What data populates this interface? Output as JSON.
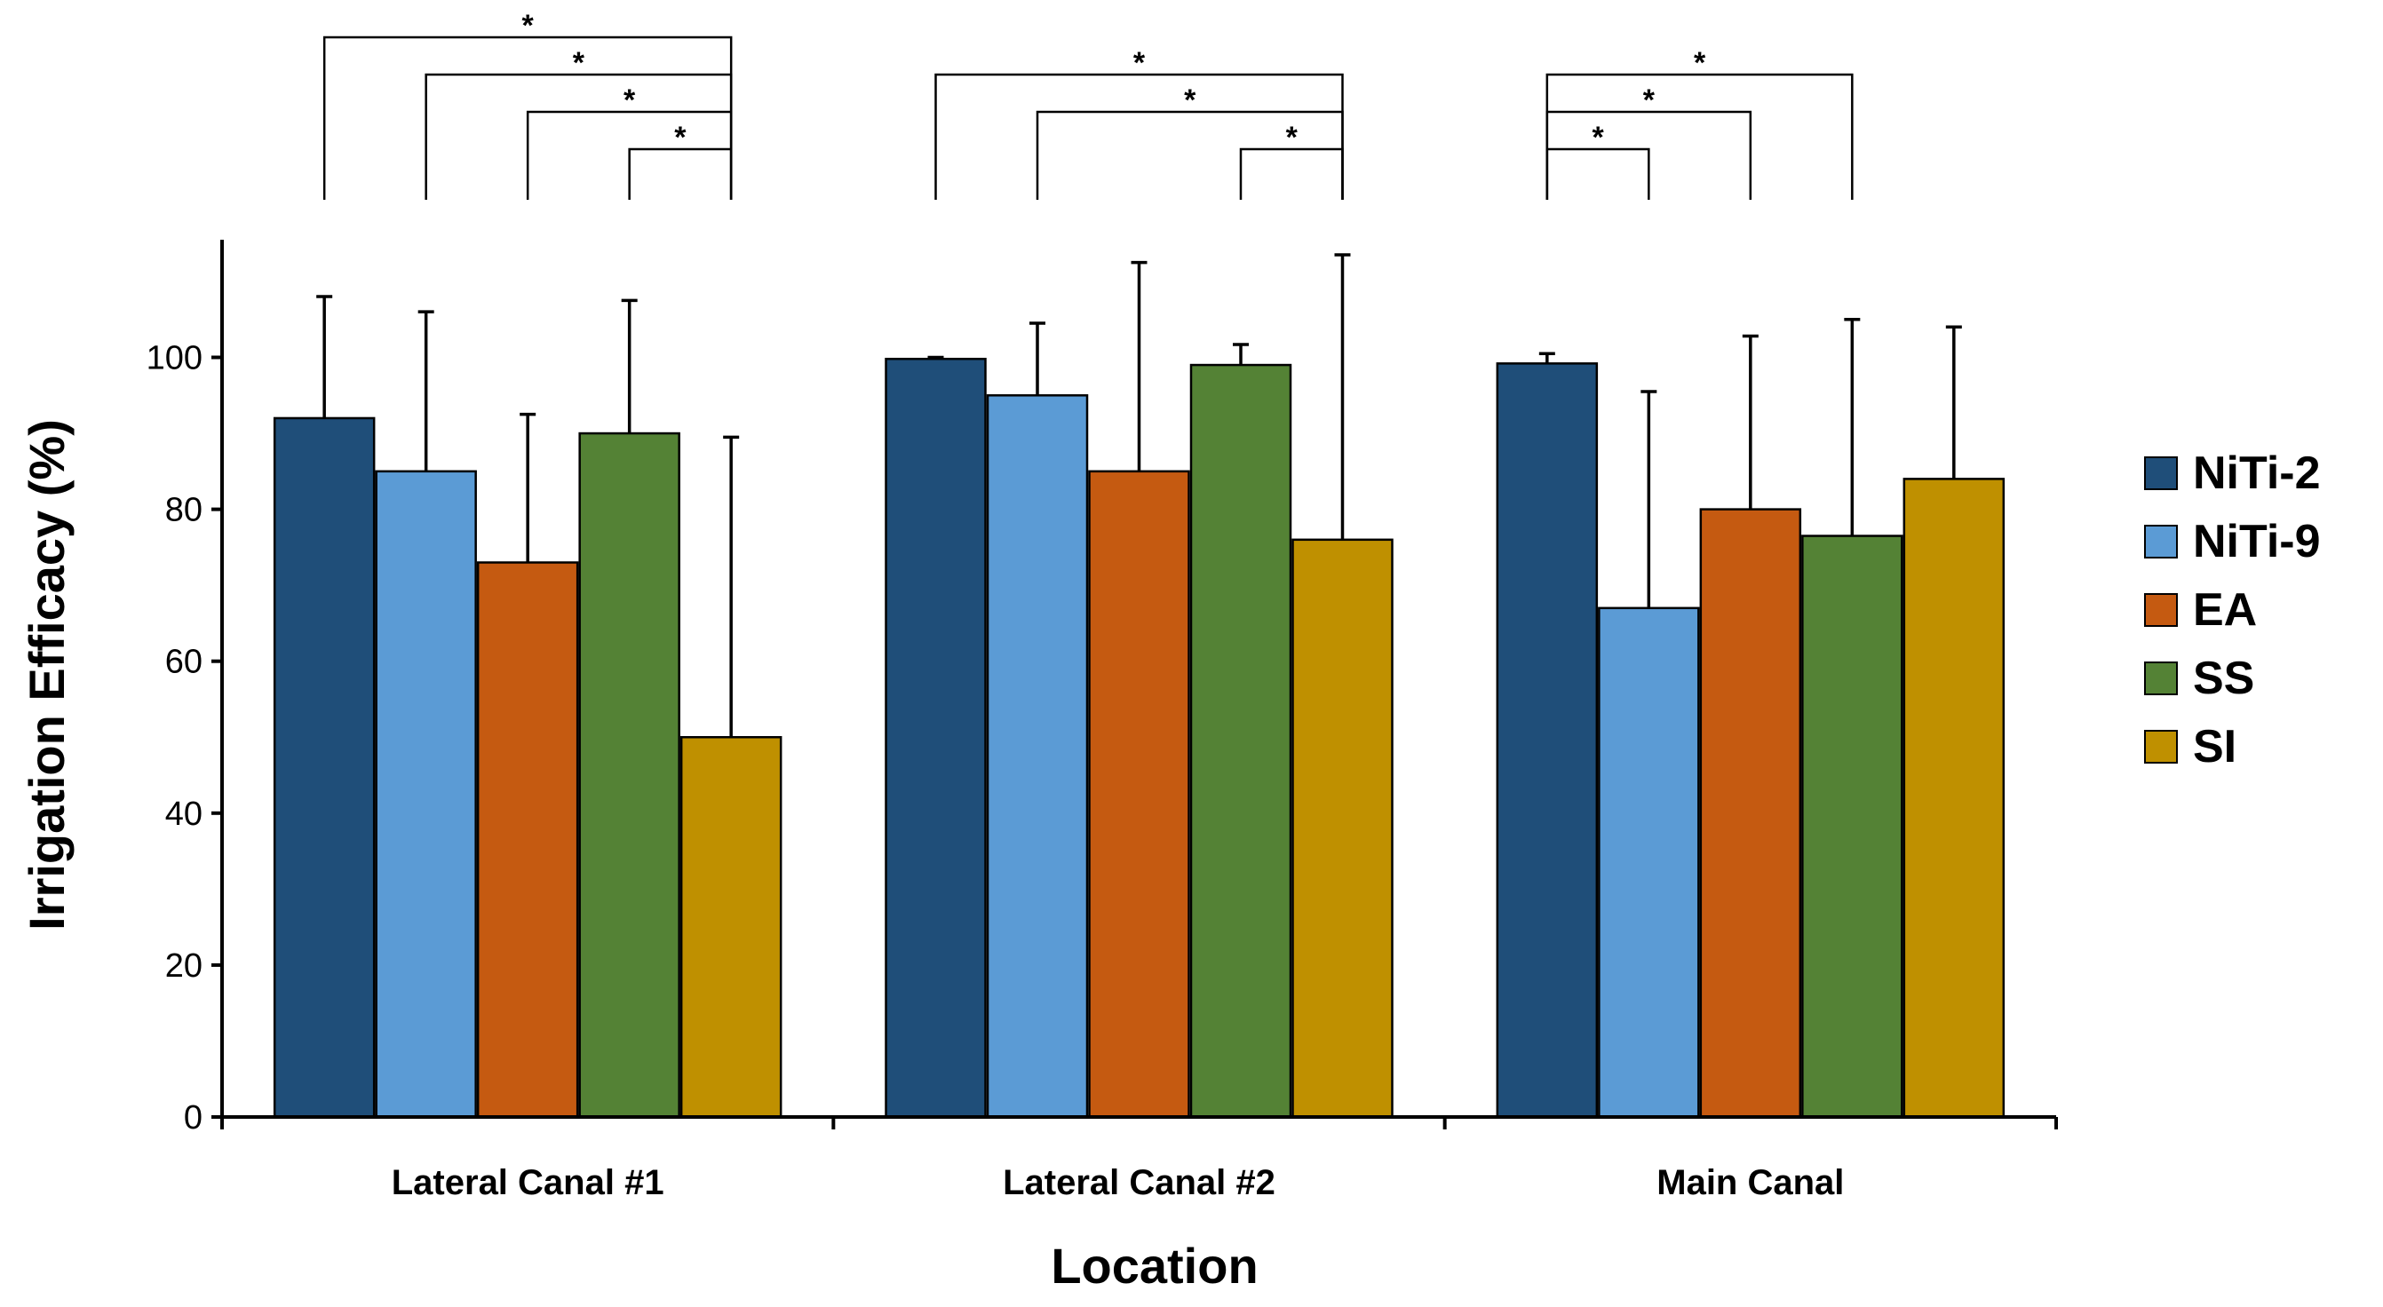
{
  "chart_data": {
    "type": "bar",
    "title": "",
    "xlabel": "Location",
    "ylabel": "Irrigation Efficacy (%)",
    "ylim": [
      0,
      115
    ],
    "yticks": [
      0,
      20,
      40,
      60,
      80,
      100
    ],
    "categories": [
      "Lateral Canal #1",
      "Lateral Canal #2",
      "Main Canal"
    ],
    "legend_position": "right",
    "series": [
      {
        "name": "NiTi-2",
        "color": "#1F4E79",
        "values": [
          92,
          99.8,
          99.2
        ],
        "errors": [
          16,
          0.2,
          1.3
        ]
      },
      {
        "name": "NiTi-9",
        "color": "#5B9BD5",
        "values": [
          85,
          95,
          67
        ],
        "errors": [
          21,
          9.5,
          28.5
        ]
      },
      {
        "name": "EA",
        "color": "#C55A11",
        "values": [
          73,
          85,
          80
        ],
        "errors": [
          19.5,
          27.5,
          22.8
        ]
      },
      {
        "name": "SS",
        "color": "#548235",
        "values": [
          90,
          99,
          76.5
        ],
        "errors": [
          17.5,
          2.7,
          28.5
        ]
      },
      {
        "name": "SI",
        "color": "#BF9000",
        "values": [
          50,
          76,
          84
        ],
        "errors": [
          39.5,
          37.5,
          20
        ]
      }
    ],
    "significance": [
      {
        "category": 0,
        "from": "NiTi-2",
        "to": "SI",
        "label": "*"
      },
      {
        "category": 0,
        "from": "NiTi-9",
        "to": "SI",
        "label": "*"
      },
      {
        "category": 0,
        "from": "EA",
        "to": "SI",
        "label": "*"
      },
      {
        "category": 0,
        "from": "SS",
        "to": "SI",
        "label": "*"
      },
      {
        "category": 1,
        "from": "NiTi-2",
        "to": "SI",
        "label": "*"
      },
      {
        "category": 1,
        "from": "NiTi-9",
        "to": "SI",
        "label": "*"
      },
      {
        "category": 1,
        "from": "SS",
        "to": "SI",
        "label": "*"
      },
      {
        "category": 2,
        "from": "NiTi-2",
        "to": "SS",
        "label": "*"
      },
      {
        "category": 2,
        "from": "NiTi-2",
        "to": "EA",
        "label": "*"
      },
      {
        "category": 2,
        "from": "NiTi-2",
        "to": "NiTi-9",
        "label": "*"
      }
    ]
  }
}
